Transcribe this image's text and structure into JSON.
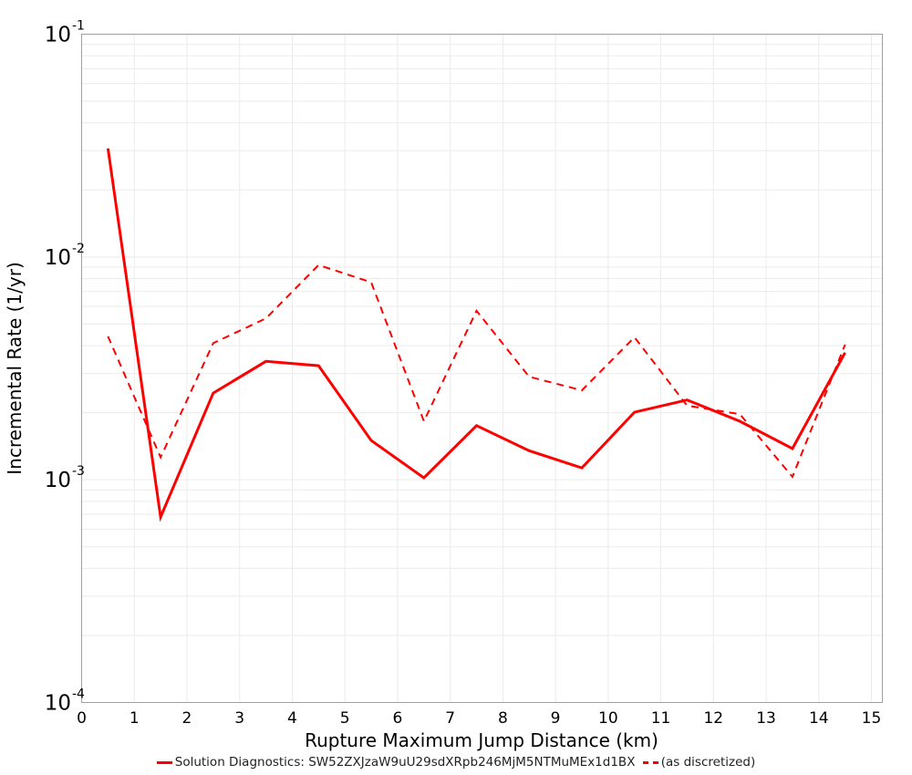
{
  "chart_data": {
    "type": "line",
    "title": "",
    "xlabel": "Rupture Maximum Jump Distance (km)",
    "ylabel": "Incremental Rate (1/yr)",
    "xlim": [
      0,
      15.2
    ],
    "ylim": [
      0.0001,
      0.1
    ],
    "yscale": "log",
    "grid": true,
    "legend_position": "bottom",
    "x_ticks": [
      0,
      1,
      2,
      3,
      4,
      5,
      6,
      7,
      8,
      9,
      10,
      11,
      12,
      13,
      14,
      15
    ],
    "y_ticks": [
      {
        "base": "10",
        "exp": "-1",
        "value": 0.1
      },
      {
        "base": "10",
        "exp": "-2",
        "value": 0.01
      },
      {
        "base": "10",
        "exp": "-3",
        "value": 0.001
      },
      {
        "base": "10",
        "exp": "-4",
        "value": 0.0001
      }
    ],
    "x": [
      0.5,
      1.5,
      2.5,
      3.5,
      4.5,
      5.5,
      6.5,
      7.5,
      8.5,
      9.5,
      10.5,
      11.5,
      12.5,
      13.5,
      14.5
    ],
    "series": [
      {
        "name": "Solution Diagnostics: SW52ZXJzaW9uU29sdXRpb246MjM5NTMuMEx1d1BX",
        "style": "solid",
        "color": "#ff0000",
        "values": [
          0.0307,
          0.00068,
          0.00245,
          0.0034,
          0.00325,
          0.0015,
          0.00102,
          0.00175,
          0.00135,
          0.00113,
          0.00201,
          0.00228,
          0.00183,
          0.00138,
          0.00372
        ]
      },
      {
        "name": "(as discretized)",
        "style": "dashed",
        "color": "#ff0000",
        "values": [
          0.0044,
          0.00126,
          0.0041,
          0.0053,
          0.0092,
          0.0077,
          0.00183,
          0.00573,
          0.0029,
          0.00252,
          0.00436,
          0.00215,
          0.00197,
          0.00103,
          0.00404
        ]
      }
    ]
  },
  "legend": {
    "series0": "Solution Diagnostics: SW52ZXJzaW9uU29sdXRpb246MjM5NTMuMEx1d1BX",
    "series1": "(as discretized)"
  }
}
